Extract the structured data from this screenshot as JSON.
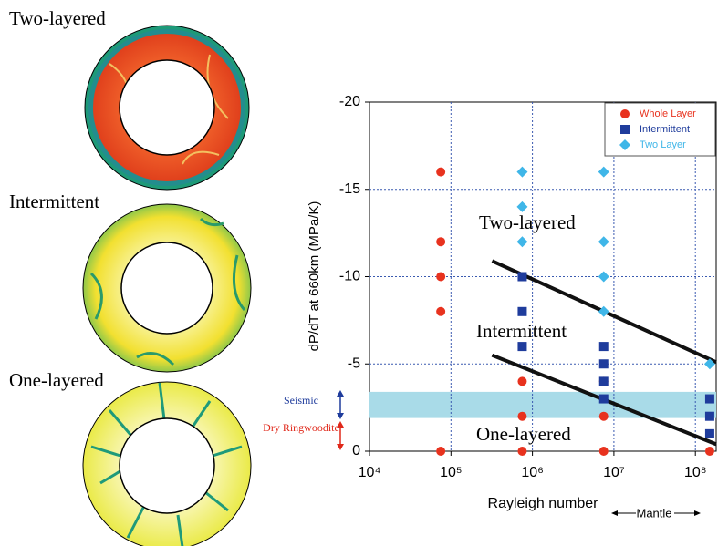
{
  "panels": [
    {
      "label": "Two-layered"
    },
    {
      "label": "Intermittent"
    },
    {
      "label": "One-layered"
    }
  ],
  "side_labels": {
    "seismic": "Seismic",
    "dry_ringwoodite": "Dry Ringwoodite"
  },
  "chart_data": {
    "type": "scatter",
    "x_label": "Rayleigh number",
    "y_label": "dP/dT at 660km (MPa/K)",
    "x_log": true,
    "xlim": [
      10000,
      180000000
    ],
    "ylim": [
      0,
      -20
    ],
    "xticks": [
      {
        "value": 10000,
        "label": "10⁴"
      },
      {
        "value": 100000,
        "label": "10⁵"
      },
      {
        "value": 1000000,
        "label": "10⁶"
      },
      {
        "value": 10000000,
        "label": "10⁷"
      },
      {
        "value": 100000000,
        "label": "10⁸"
      }
    ],
    "yticks": [
      0,
      -5,
      -10,
      -15,
      -20
    ],
    "grid": true,
    "legend": "upper right",
    "series": [
      {
        "name": "Whole Layer",
        "color": "#e8321e",
        "marker": "circle",
        "x": [
          75000,
          75000,
          75000,
          75000,
          75000,
          750000,
          750000,
          750000,
          7500000,
          7500000,
          7500000,
          150000000
        ],
        "values": [
          0,
          -8,
          -10,
          -12,
          -16,
          0,
          -2,
          -4,
          0,
          -2,
          -4,
          0
        ]
      },
      {
        "name": "Intermittent",
        "color": "#1f3c9c",
        "marker": "square",
        "x": [
          750000,
          750000,
          750000,
          7500000,
          7500000,
          7500000,
          7500000,
          150000000,
          150000000,
          150000000
        ],
        "values": [
          -6,
          -8,
          -10,
          -3,
          -4,
          -5,
          -6,
          -1,
          -2,
          -3
        ]
      },
      {
        "name": "Two Layer",
        "color": "#3fb6e8",
        "marker": "diamond",
        "x": [
          750000,
          750000,
          750000,
          7500000,
          7500000,
          7500000,
          7500000,
          150000000
        ],
        "values": [
          -12,
          -14,
          -16,
          -8,
          -10,
          -12,
          -16,
          -5
        ]
      }
    ],
    "shaded_band": [
      -1.9,
      -3.4
    ],
    "boundary_lines": [
      {
        "x": [
          320000,
          180000000
        ],
        "y": [
          -10.9,
          -5.1
        ]
      },
      {
        "x": [
          320000,
          180000000
        ],
        "y": [
          -5.5,
          -0.4
        ]
      }
    ],
    "annotations": [
      "Two-layered",
      "Intermittent",
      "One-layered",
      "Mantle"
    ]
  }
}
